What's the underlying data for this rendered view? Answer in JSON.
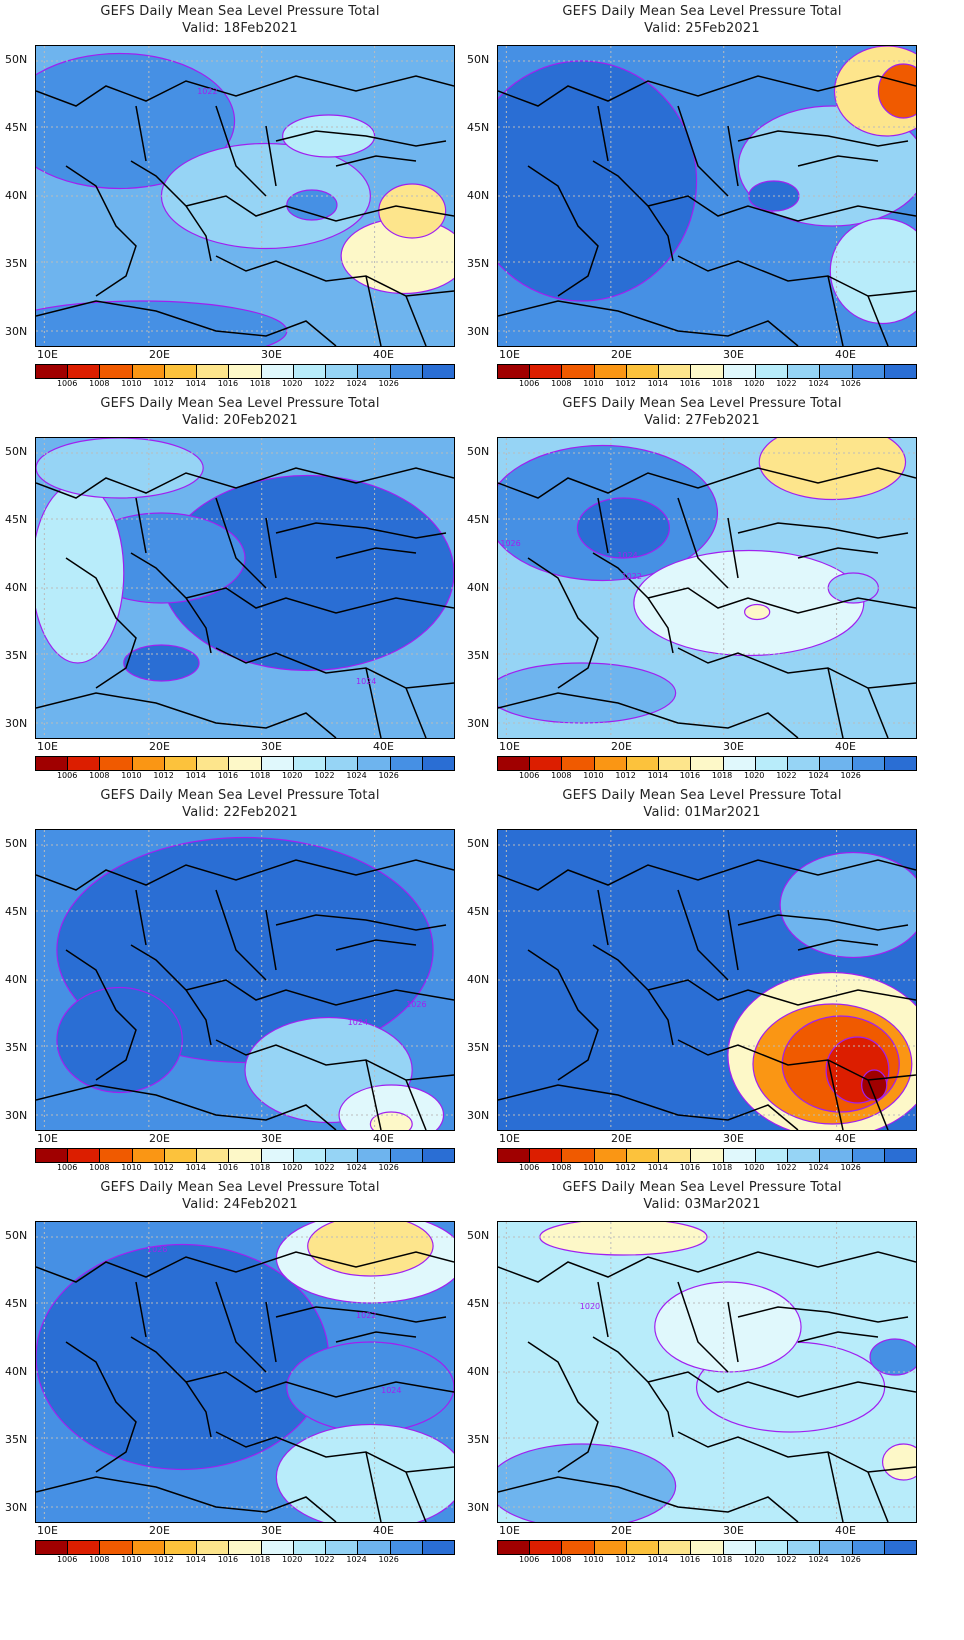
{
  "title_line": "GEFS Daily Mean Sea Level Pressure Total",
  "lat_labels": [
    "50N",
    "45N",
    "40N",
    "35N",
    "30N"
  ],
  "lon_labels": [
    "10E",
    "20E",
    "30E",
    "40E"
  ],
  "colorbar": {
    "colors": [
      "#a00000",
      "#dc1e00",
      "#f05a00",
      "#fa9614",
      "#fcc23c",
      "#fde58c",
      "#fdf8c8",
      "#e0f8fc",
      "#b8ecfa",
      "#96d4f5",
      "#6eb4ee",
      "#4690e4",
      "#2a6ed4"
    ],
    "labels": [
      "1006",
      "1008",
      "1010",
      "1012",
      "1014",
      "1016",
      "1018",
      "1020",
      "1022",
      "1024",
      "1026"
    ]
  },
  "panels": [
    {
      "valid": "Valid: 18Feb2021",
      "contour_labels": [
        "1022"
      ]
    },
    {
      "valid": "Valid: 25Feb2021",
      "contour_labels": []
    },
    {
      "valid": "Valid: 20Feb2021",
      "contour_labels": [
        "1024"
      ]
    },
    {
      "valid": "Valid: 27Feb2021",
      "contour_labels": [
        "1026",
        "1024",
        "1022"
      ]
    },
    {
      "valid": "Valid: 22Feb2021",
      "contour_labels": [
        "1024",
        "1026"
      ]
    },
    {
      "valid": "Valid: 01Mar2021",
      "contour_labels": []
    },
    {
      "valid": "Valid: 24Feb2021",
      "contour_labels": [
        "1026",
        "1022",
        "1024"
      ]
    },
    {
      "valid": "Valid: 03Mar2021",
      "contour_labels": [
        "1020"
      ]
    }
  ]
}
